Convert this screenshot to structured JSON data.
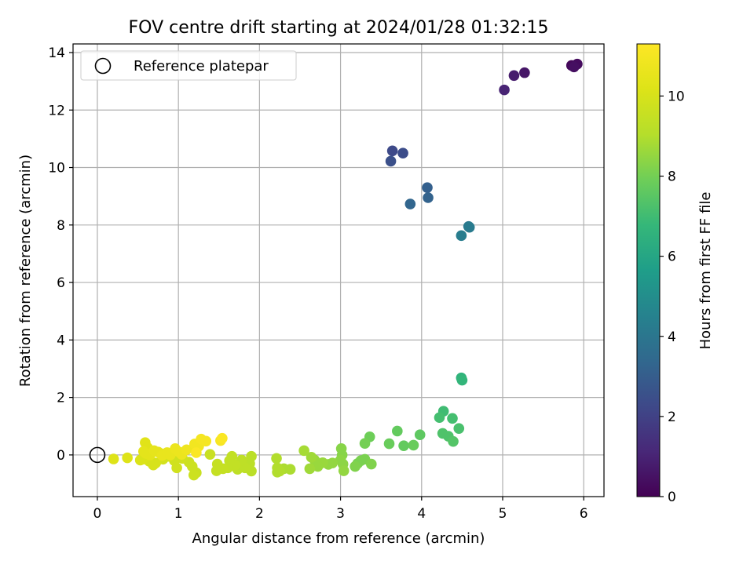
{
  "chart_data": {
    "type": "scatter",
    "title": "FOV centre drift starting at 2024/01/28 01:32:15",
    "xlabel": "Angular distance from reference (arcmin)",
    "ylabel": "Rotation from reference (arcmin)",
    "xlim": [
      -0.3,
      6.25
    ],
    "ylim": [
      -1.45,
      14.3
    ],
    "x_ticks": [
      0,
      1,
      2,
      3,
      4,
      5,
      6
    ],
    "y_ticks": [
      0,
      2,
      4,
      6,
      8,
      10,
      12,
      14
    ],
    "grid": true,
    "legend": {
      "position": "top-left",
      "entries": [
        "Reference platepar"
      ]
    },
    "reference_point": {
      "name": "Reference platepar",
      "x": 0,
      "y": 0
    },
    "colorbar": {
      "label": "Hours from first FF file",
      "colormap": "viridis",
      "range": [
        0,
        11.3
      ],
      "ticks": [
        0,
        2,
        4,
        6,
        8,
        10
      ]
    },
    "series": [
      {
        "points": [
          {
            "x": 5.85,
            "y": 13.55,
            "c": 0.2
          },
          {
            "x": 5.92,
            "y": 13.6,
            "c": 0.3
          },
          {
            "x": 5.88,
            "y": 13.5,
            "c": 0.4
          },
          {
            "x": 5.27,
            "y": 13.3,
            "c": 0.6
          },
          {
            "x": 5.14,
            "y": 13.2,
            "c": 0.8
          },
          {
            "x": 5.02,
            "y": 12.7,
            "c": 1.0
          },
          {
            "x": 3.64,
            "y": 10.58,
            "c": 2.3
          },
          {
            "x": 3.77,
            "y": 10.5,
            "c": 2.4
          },
          {
            "x": 3.62,
            "y": 10.22,
            "c": 2.5
          },
          {
            "x": 4.07,
            "y": 9.3,
            "c": 3.1
          },
          {
            "x": 4.08,
            "y": 8.95,
            "c": 3.2
          },
          {
            "x": 3.86,
            "y": 8.73,
            "c": 3.3
          },
          {
            "x": 4.58,
            "y": 7.95,
            "c": 4.1
          },
          {
            "x": 4.59,
            "y": 7.92,
            "c": 4.2
          },
          {
            "x": 4.49,
            "y": 7.63,
            "c": 4.3
          },
          {
            "x": 4.49,
            "y": 2.68,
            "c": 6.6
          },
          {
            "x": 4.5,
            "y": 2.6,
            "c": 6.7
          },
          {
            "x": 4.27,
            "y": 1.52,
            "c": 7.0
          },
          {
            "x": 4.22,
            "y": 1.3,
            "c": 7.1
          },
          {
            "x": 4.38,
            "y": 1.27,
            "c": 7.1
          },
          {
            "x": 4.46,
            "y": 0.92,
            "c": 7.2
          },
          {
            "x": 4.26,
            "y": 0.75,
            "c": 7.3
          },
          {
            "x": 4.33,
            "y": 0.65,
            "c": 7.3
          },
          {
            "x": 4.39,
            "y": 0.47,
            "c": 7.4
          },
          {
            "x": 3.98,
            "y": 0.7,
            "c": 7.6
          },
          {
            "x": 3.7,
            "y": 0.83,
            "c": 7.7
          },
          {
            "x": 3.78,
            "y": 0.32,
            "c": 7.7
          },
          {
            "x": 3.9,
            "y": 0.34,
            "c": 7.8
          },
          {
            "x": 3.6,
            "y": 0.39,
            "c": 7.8
          },
          {
            "x": 3.36,
            "y": 0.63,
            "c": 7.9
          },
          {
            "x": 3.3,
            "y": 0.4,
            "c": 8.0
          },
          {
            "x": 3.3,
            "y": -0.15,
            "c": 8.1
          },
          {
            "x": 3.25,
            "y": -0.2,
            "c": 8.1
          },
          {
            "x": 3.21,
            "y": -0.3,
            "c": 8.1
          },
          {
            "x": 3.18,
            "y": -0.4,
            "c": 8.2
          },
          {
            "x": 3.38,
            "y": -0.32,
            "c": 8.2
          },
          {
            "x": 3.01,
            "y": 0.22,
            "c": 8.3
          },
          {
            "x": 3.02,
            "y": 0.0,
            "c": 8.3
          },
          {
            "x": 3.0,
            "y": -0.18,
            "c": 8.4
          },
          {
            "x": 3.03,
            "y": -0.32,
            "c": 8.4
          },
          {
            "x": 3.04,
            "y": -0.55,
            "c": 8.5
          },
          {
            "x": 2.9,
            "y": -0.28,
            "c": 8.5
          },
          {
            "x": 2.85,
            "y": -0.33,
            "c": 8.5
          },
          {
            "x": 2.78,
            "y": -0.27,
            "c": 8.6
          },
          {
            "x": 2.72,
            "y": -0.4,
            "c": 8.6
          },
          {
            "x": 2.68,
            "y": -0.18,
            "c": 8.6
          },
          {
            "x": 2.64,
            "y": -0.08,
            "c": 8.7
          },
          {
            "x": 2.62,
            "y": -0.48,
            "c": 8.7
          },
          {
            "x": 2.55,
            "y": 0.15,
            "c": 8.8
          },
          {
            "x": 2.38,
            "y": -0.5,
            "c": 8.9
          },
          {
            "x": 2.3,
            "y": -0.48,
            "c": 8.9
          },
          {
            "x": 2.25,
            "y": -0.56,
            "c": 9.0
          },
          {
            "x": 2.22,
            "y": -0.6,
            "c": 9.0
          },
          {
            "x": 2.22,
            "y": -0.45,
            "c": 9.0
          },
          {
            "x": 2.21,
            "y": -0.12,
            "c": 9.0
          },
          {
            "x": 1.9,
            "y": -0.56,
            "c": 9.2
          },
          {
            "x": 1.88,
            "y": -0.3,
            "c": 9.2
          },
          {
            "x": 1.9,
            "y": -0.05,
            "c": 9.2
          },
          {
            "x": 1.82,
            "y": -0.45,
            "c": 9.3
          },
          {
            "x": 1.78,
            "y": -0.18,
            "c": 9.3
          },
          {
            "x": 1.73,
            "y": -0.5,
            "c": 9.3
          },
          {
            "x": 1.7,
            "y": -0.35,
            "c": 9.4
          },
          {
            "x": 1.66,
            "y": -0.05,
            "c": 9.4
          },
          {
            "x": 1.63,
            "y": -0.2,
            "c": 9.4
          },
          {
            "x": 1.61,
            "y": -0.45,
            "c": 9.4
          },
          {
            "x": 1.55,
            "y": -0.48,
            "c": 9.5
          },
          {
            "x": 1.48,
            "y": -0.32,
            "c": 9.5
          },
          {
            "x": 1.47,
            "y": -0.55,
            "c": 9.5
          },
          {
            "x": 1.39,
            "y": 0.02,
            "c": 9.6
          },
          {
            "x": 1.22,
            "y": -0.62,
            "c": 9.6
          },
          {
            "x": 1.19,
            "y": -0.7,
            "c": 9.7
          },
          {
            "x": 1.17,
            "y": -0.4,
            "c": 9.7
          },
          {
            "x": 1.13,
            "y": -0.25,
            "c": 9.7
          },
          {
            "x": 1.05,
            "y": -0.12,
            "c": 9.8
          },
          {
            "x": 0.98,
            "y": -0.45,
            "c": 9.8
          },
          {
            "x": 0.95,
            "y": -0.2,
            "c": 9.8
          },
          {
            "x": 0.88,
            "y": -0.05,
            "c": 9.9
          },
          {
            "x": 0.81,
            "y": -0.15,
            "c": 9.9
          },
          {
            "x": 0.72,
            "y": -0.28,
            "c": 10.0
          },
          {
            "x": 0.69,
            "y": -0.35,
            "c": 10.0
          },
          {
            "x": 0.64,
            "y": -0.22,
            "c": 10.0
          },
          {
            "x": 0.56,
            "y": -0.15,
            "c": 10.1
          },
          {
            "x": 0.53,
            "y": -0.18,
            "c": 10.1
          },
          {
            "x": 0.37,
            "y": -0.1,
            "c": 10.2
          },
          {
            "x": 0.2,
            "y": -0.14,
            "c": 10.2
          },
          {
            "x": 0.59,
            "y": 0.43,
            "c": 10.3
          },
          {
            "x": 0.62,
            "y": 0.25,
            "c": 10.3
          },
          {
            "x": 0.65,
            "y": 0.0,
            "c": 10.4
          },
          {
            "x": 0.6,
            "y": 0.05,
            "c": 10.4
          },
          {
            "x": 0.57,
            "y": 0.12,
            "c": 10.4
          },
          {
            "x": 0.7,
            "y": 0.15,
            "c": 10.5
          },
          {
            "x": 0.75,
            "y": 0.1,
            "c": 10.5
          },
          {
            "x": 0.78,
            "y": 0.05,
            "c": 10.5
          },
          {
            "x": 0.8,
            "y": -0.02,
            "c": 10.6
          },
          {
            "x": 0.86,
            "y": 0.08,
            "c": 10.6
          },
          {
            "x": 0.9,
            "y": 0.0,
            "c": 10.6
          },
          {
            "x": 0.96,
            "y": 0.22,
            "c": 10.7
          },
          {
            "x": 1.01,
            "y": 0.1,
            "c": 10.7
          },
          {
            "x": 1.04,
            "y": 0.02,
            "c": 10.7
          },
          {
            "x": 1.1,
            "y": 0.18,
            "c": 10.8
          },
          {
            "x": 1.19,
            "y": 0.25,
            "c": 10.8
          },
          {
            "x": 1.2,
            "y": 0.38,
            "c": 10.9
          },
          {
            "x": 1.25,
            "y": 0.3,
            "c": 10.9
          },
          {
            "x": 1.28,
            "y": 0.55,
            "c": 11.0
          },
          {
            "x": 1.34,
            "y": 0.48,
            "c": 11.0
          },
          {
            "x": 1.52,
            "y": 0.5,
            "c": 11.1
          },
          {
            "x": 1.54,
            "y": 0.58,
            "c": 11.2
          },
          {
            "x": 1.22,
            "y": 0.08,
            "c": 11.2
          }
        ]
      }
    ]
  }
}
